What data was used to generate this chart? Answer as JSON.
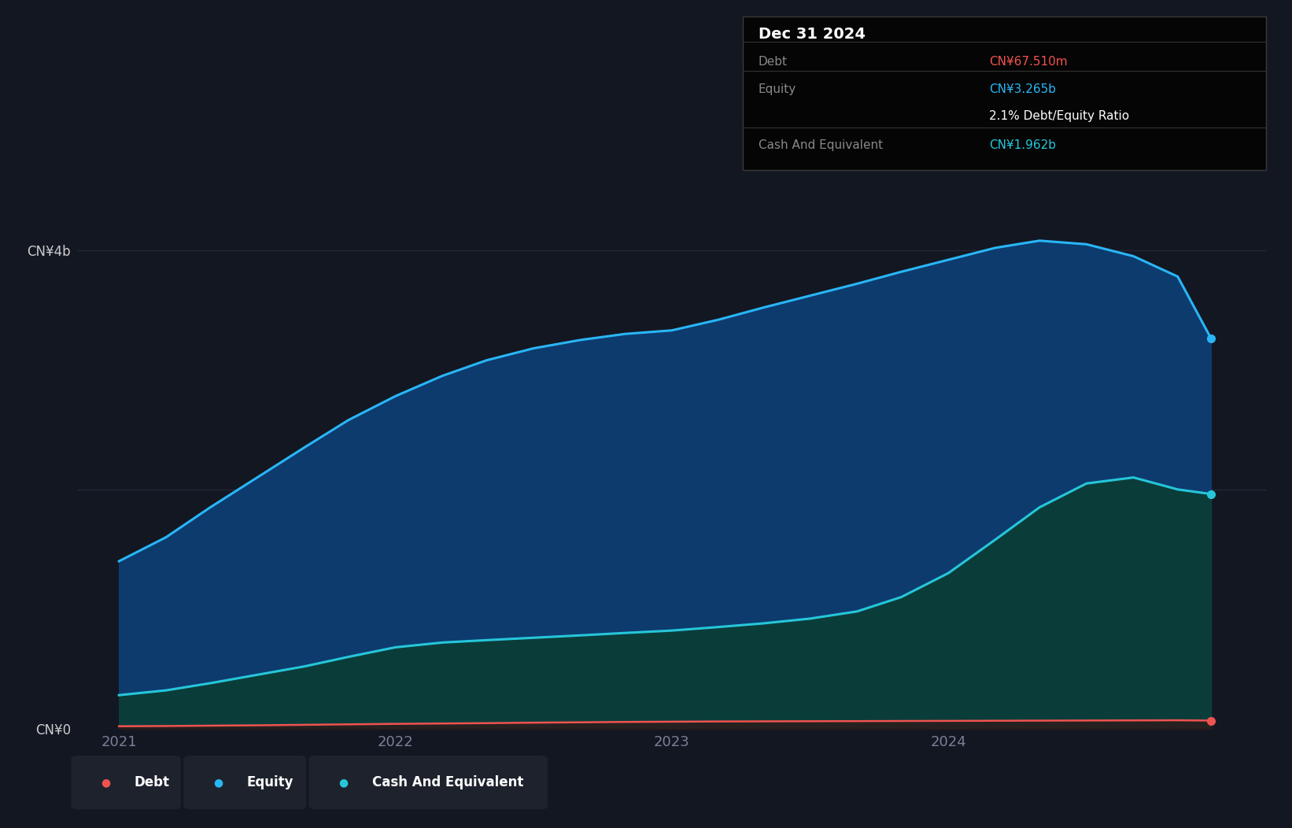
{
  "background_color": "#131722",
  "plot_bg_color": "#131722",
  "grid_color": "#252a38",
  "years": [
    2021.0,
    2021.17,
    2021.33,
    2021.5,
    2021.67,
    2021.83,
    2022.0,
    2022.17,
    2022.33,
    2022.5,
    2022.67,
    2022.83,
    2023.0,
    2023.17,
    2023.33,
    2023.5,
    2023.67,
    2023.83,
    2024.0,
    2024.17,
    2024.33,
    2024.5,
    2024.67,
    2024.83,
    2024.95
  ],
  "equity": [
    1.4,
    1.6,
    1.85,
    2.1,
    2.35,
    2.58,
    2.78,
    2.95,
    3.08,
    3.18,
    3.25,
    3.3,
    3.33,
    3.42,
    3.52,
    3.62,
    3.72,
    3.82,
    3.92,
    4.02,
    4.08,
    4.05,
    3.95,
    3.78,
    3.265
  ],
  "cash": [
    0.28,
    0.32,
    0.38,
    0.45,
    0.52,
    0.6,
    0.68,
    0.72,
    0.74,
    0.76,
    0.78,
    0.8,
    0.82,
    0.85,
    0.88,
    0.92,
    0.98,
    1.1,
    1.3,
    1.58,
    1.85,
    2.05,
    2.1,
    2.0,
    1.962
  ],
  "debt": [
    0.02,
    0.022,
    0.025,
    0.028,
    0.032,
    0.036,
    0.04,
    0.043,
    0.046,
    0.05,
    0.053,
    0.056,
    0.058,
    0.06,
    0.061,
    0.062,
    0.063,
    0.064,
    0.065,
    0.066,
    0.067,
    0.068,
    0.069,
    0.07,
    0.06751
  ],
  "equity_color": "#29b6f6",
  "equity_fill": "#0d3b6e",
  "cash_color": "#26c6da",
  "cash_fill": "#0a3d3a",
  "debt_color": "#ef5350",
  "debt_fill": "#3a0f0f",
  "ylim": [
    0,
    4.5
  ],
  "xlim_left": 2020.85,
  "xlim_right": 2025.15,
  "ytick_positions": [
    0,
    2,
    4
  ],
  "ytick_labels": [
    "CN¥0",
    "",
    "CN¥4b"
  ],
  "xtick_positions": [
    2021,
    2022,
    2023,
    2024
  ],
  "xtick_labels": [
    "2021",
    "2022",
    "2023",
    "2024"
  ],
  "tooltip_title": "Dec 31 2024",
  "tooltip_debt_label": "Debt",
  "tooltip_debt_value": "CN¥67.510m",
  "tooltip_equity_label": "Equity",
  "tooltip_equity_value": "CN¥3.265b",
  "tooltip_ratio": "2.1% Debt/Equity Ratio",
  "tooltip_cash_label": "Cash And Equivalent",
  "tooltip_cash_value": "CN¥1.962b",
  "legend_items": [
    "Debt",
    "Equity",
    "Cash And Equivalent"
  ],
  "legend_colors": [
    "#ef5350",
    "#29b6f6",
    "#26c6da"
  ],
  "legend_box_color": "#1e222d"
}
